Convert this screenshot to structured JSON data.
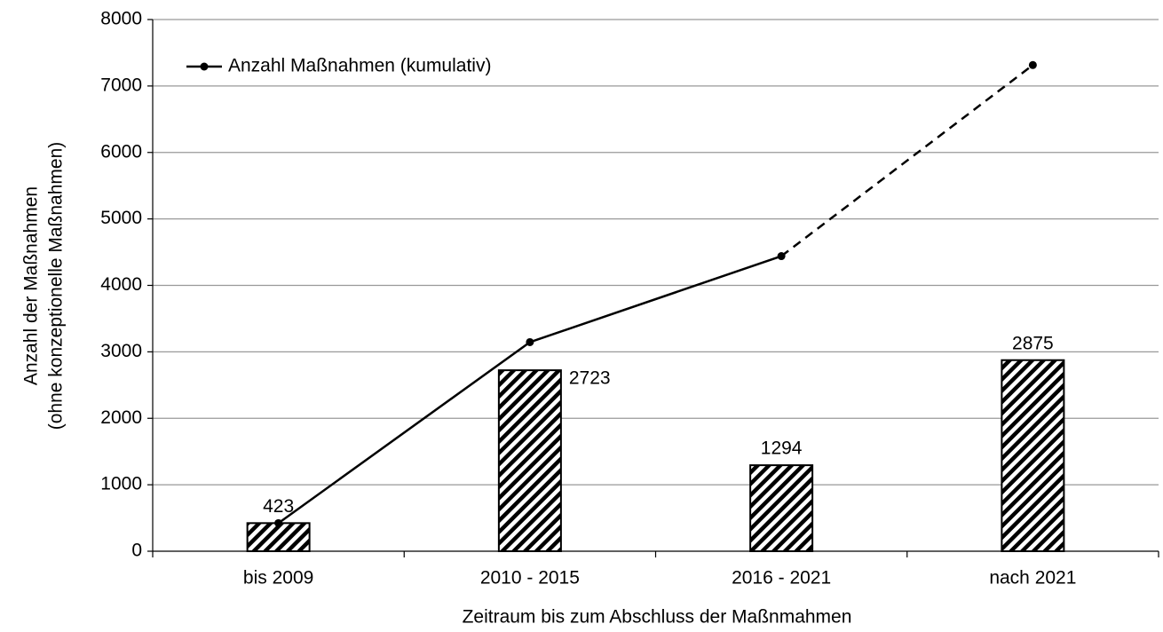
{
  "chart_data": {
    "type": "bar",
    "categories": [
      "bis 2009",
      "2010 - 2015",
      "2016 - 2021",
      "nach 2021"
    ],
    "values": [
      423,
      2723,
      1294,
      2875
    ],
    "color": "#000000",
    "hatch": true,
    "line": {
      "name": "Anzahl Maßnahmen (kumulativ)",
      "color": "#000000",
      "values": [
        423,
        3146,
        4440,
        7315
      ],
      "dashed_from_index": 2
    },
    "ylabel": [
      "Anzahl der Maßnahmen",
      "(ohne konzeptionelle  Maßnahmen)"
    ],
    "xlabel": "Zeitraum bis zum Abschluss der Maßnmahmen",
    "ylim": [
      0,
      8000
    ],
    "yticks": [
      0,
      1000,
      2000,
      3000,
      4000,
      5000,
      6000,
      7000,
      8000
    ],
    "grid": true,
    "legend": "top-left"
  }
}
